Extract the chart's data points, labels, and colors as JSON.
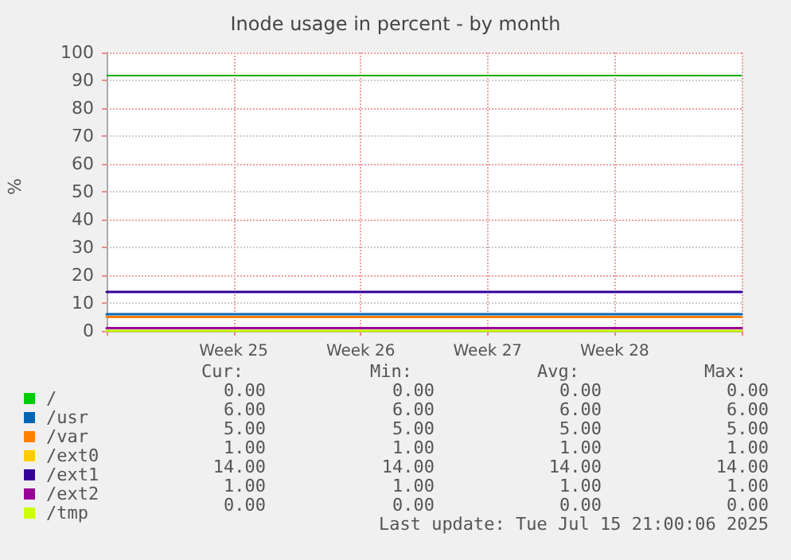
{
  "chart_data": {
    "type": "line",
    "title": "Inode usage in percent - by month",
    "ylabel": "%",
    "categories": [
      null,
      "Week 25",
      "Week 26",
      "Week 27",
      "Week 28",
      null
    ],
    "ylim": [
      0,
      100
    ],
    "yticks": [
      0,
      10,
      20,
      30,
      40,
      50,
      60,
      70,
      80,
      90,
      100
    ],
    "grid": true,
    "legend": "bottom left",
    "marker": "none",
    "line_style": "solid",
    "series": [
      {
        "name": "/",
        "color": "#00cc00",
        "values": [
          null,
          null,
          null,
          null,
          null,
          null
        ]
      },
      {
        "name": "/usr",
        "color": "#0066b3",
        "values": [
          6,
          6,
          6,
          6,
          6,
          6
        ]
      },
      {
        "name": "/var",
        "color": "#ff8000",
        "values": [
          5,
          5,
          5,
          5,
          5,
          5
        ]
      },
      {
        "name": "/ext0",
        "color": "#ffcc00",
        "values": [
          null,
          null,
          null,
          null,
          null,
          null
        ]
      },
      {
        "name": "/ext1",
        "color": "#330099",
        "values": [
          14,
          14,
          14,
          14,
          14,
          14
        ]
      },
      {
        "name": "/ext2",
        "color": "#990099",
        "values": [
          1,
          1,
          1,
          1,
          1,
          1
        ]
      },
      {
        "name": "/tmp",
        "color": "#ccff00",
        "values": [
          0,
          0,
          0,
          0,
          0,
          0
        ]
      }
    ],
    "ref_lines": [
      {
        "axis": "y",
        "value": 92,
        "label": null,
        "color": "#00aa00",
        "line_style": "solid"
      }
    ],
    "annotations": [
      "Cur:",
      "Min:",
      "Avg:",
      "Max:",
      "0.00",
      "0.00",
      "0.00",
      "0.00",
      "6.00",
      "6.00",
      "6.00",
      "6.00",
      "5.00",
      "5.00",
      "5.00",
      "5.00",
      "1.00",
      "1.00",
      "1.00",
      "1.00",
      "14.00",
      "14.00",
      "14.00",
      "14.00",
      "1.00",
      "1.00",
      "1.00",
      "1.00",
      "0.00",
      "0.00",
      "0.00",
      "0.00",
      "Last update: Tue Jul 15 21:00:06 2025"
    ]
  }
}
